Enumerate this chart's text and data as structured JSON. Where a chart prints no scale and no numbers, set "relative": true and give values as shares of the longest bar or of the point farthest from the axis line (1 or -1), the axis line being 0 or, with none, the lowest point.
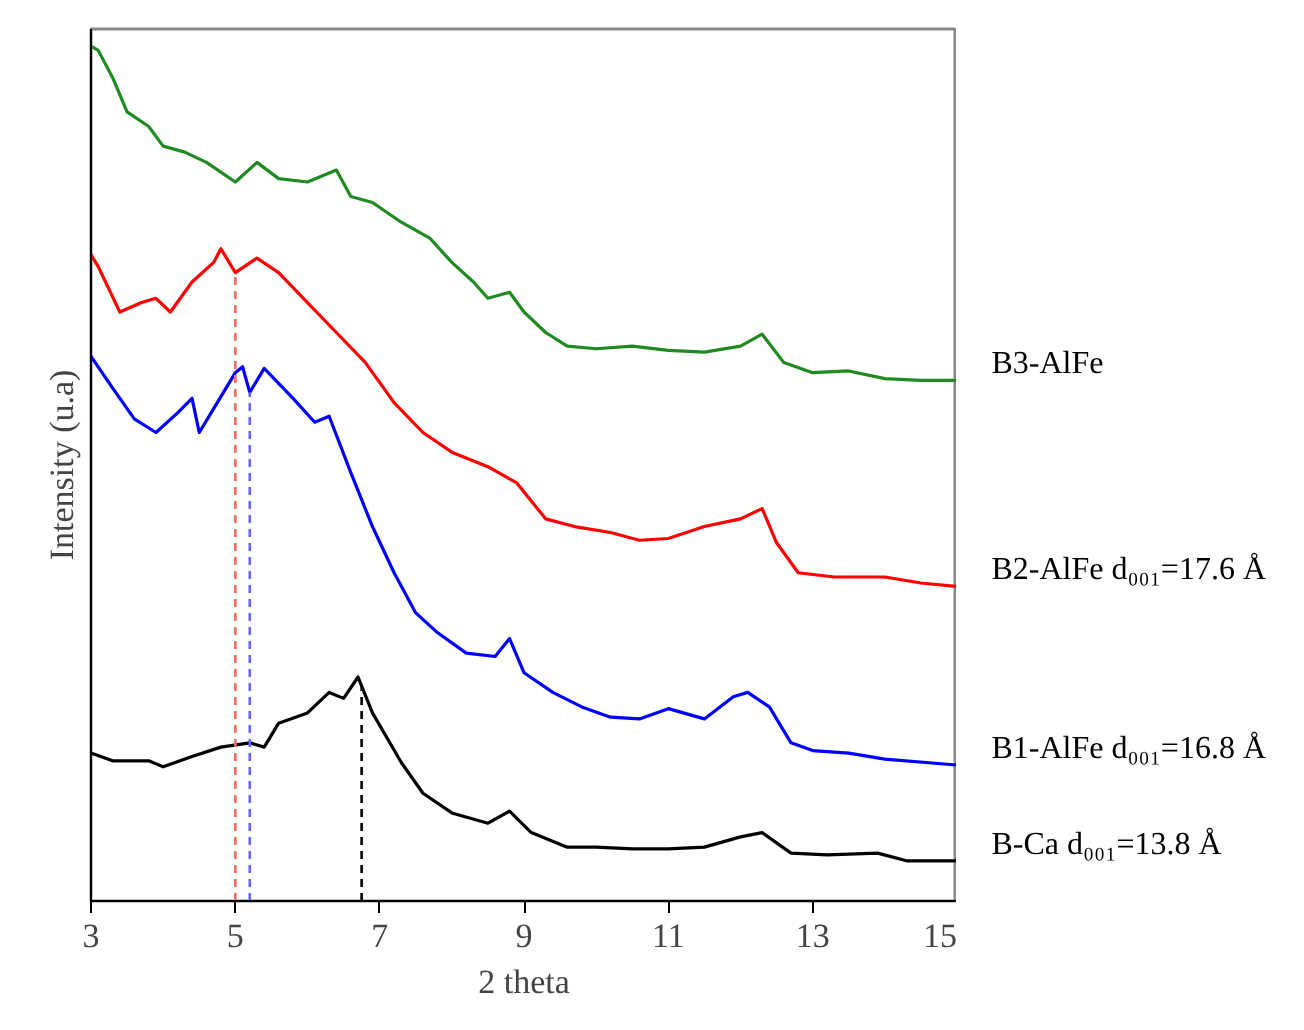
{
  "chart_data": {
    "type": "line",
    "relative": true,
    "xlabel": "2 theta",
    "ylabel": "Intensity (u.a)",
    "xlim": [
      3,
      15
    ],
    "xticks": [
      3,
      5,
      7,
      9,
      11,
      13,
      15
    ],
    "tick_labels": "x",
    "grid": false,
    "marker": "none",
    "line_style": "solid",
    "series": [
      {
        "name": "B3-AlFe",
        "color": "#1f8a1f",
        "x": [
          3.0,
          3.1,
          3.3,
          3.5,
          3.8,
          4.0,
          4.3,
          4.6,
          5.0,
          5.3,
          5.6,
          6.0,
          6.4,
          6.6,
          6.9,
          7.3,
          7.7,
          8.0,
          8.3,
          8.5,
          8.8,
          9.0,
          9.3,
          9.6,
          10.0,
          10.5,
          11.0,
          11.5,
          12.0,
          12.3,
          12.6,
          13.0,
          13.5,
          14.0,
          14.5,
          15.0
        ],
        "values": [
          1.0,
          0.995,
          0.963,
          0.923,
          0.906,
          0.883,
          0.876,
          0.864,
          0.841,
          0.864,
          0.845,
          0.841,
          0.855,
          0.824,
          0.817,
          0.794,
          0.775,
          0.747,
          0.724,
          0.705,
          0.712,
          0.689,
          0.665,
          0.649,
          0.646,
          0.649,
          0.644,
          0.642,
          0.649,
          0.663,
          0.63,
          0.618,
          0.62,
          0.611,
          0.609,
          0.609
        ]
      },
      {
        "name": "B2-AlFe d₀₀₁=17.6 Å",
        "color": "#ff0000",
        "x": [
          3.0,
          3.1,
          3.4,
          3.7,
          3.9,
          4.1,
          4.4,
          4.7,
          4.8,
          5.0,
          5.3,
          5.6,
          6.0,
          6.4,
          6.8,
          7.2,
          7.6,
          8.0,
          8.5,
          8.9,
          9.3,
          9.7,
          10.2,
          10.6,
          11.0,
          11.5,
          12.0,
          12.3,
          12.5,
          12.8,
          13.3,
          14.0,
          14.5,
          15.0
        ],
        "values": [
          0.756,
          0.742,
          0.689,
          0.7,
          0.705,
          0.689,
          0.724,
          0.747,
          0.763,
          0.735,
          0.752,
          0.735,
          0.7,
          0.665,
          0.63,
          0.583,
          0.548,
          0.525,
          0.508,
          0.489,
          0.447,
          0.438,
          0.431,
          0.422,
          0.424,
          0.438,
          0.447,
          0.459,
          0.419,
          0.384,
          0.379,
          0.379,
          0.372,
          0.368
        ]
      },
      {
        "name": "B1-AlFe d₀₀₁=16.8 Å",
        "color": "#0000ff",
        "x": [
          3.0,
          3.3,
          3.6,
          3.9,
          4.2,
          4.4,
          4.5,
          4.7,
          5.0,
          5.1,
          5.2,
          5.4,
          5.8,
          6.1,
          6.3,
          6.6,
          6.9,
          7.2,
          7.5,
          7.8,
          8.2,
          8.6,
          8.8,
          9.0,
          9.4,
          9.8,
          10.2,
          10.6,
          11.0,
          11.5,
          11.9,
          12.1,
          12.4,
          12.7,
          13.0,
          13.5,
          14.0,
          15.0
        ],
        "values": [
          0.637,
          0.6,
          0.564,
          0.548,
          0.571,
          0.588,
          0.548,
          0.576,
          0.618,
          0.625,
          0.595,
          0.623,
          0.588,
          0.56,
          0.567,
          0.501,
          0.438,
          0.384,
          0.337,
          0.314,
          0.29,
          0.286,
          0.307,
          0.267,
          0.244,
          0.227,
          0.215,
          0.213,
          0.225,
          0.213,
          0.239,
          0.244,
          0.227,
          0.185,
          0.176,
          0.173,
          0.166,
          0.159
        ]
      },
      {
        "name": "B-Ca d₀₀₁=13.8 Å",
        "color": "#000000",
        "x": [
          3.0,
          3.3,
          3.8,
          4.0,
          4.4,
          4.8,
          5.2,
          5.4,
          5.6,
          6.0,
          6.3,
          6.5,
          6.7,
          6.9,
          7.3,
          7.6,
          8.0,
          8.5,
          8.8,
          9.1,
          9.6,
          10.0,
          10.5,
          11.0,
          11.5,
          12.0,
          12.3,
          12.7,
          13.2,
          13.9,
          14.3,
          15.0
        ],
        "values": [
          0.173,
          0.164,
          0.164,
          0.157,
          0.169,
          0.18,
          0.185,
          0.18,
          0.208,
          0.22,
          0.244,
          0.237,
          0.262,
          0.22,
          0.162,
          0.126,
          0.103,
          0.091,
          0.105,
          0.08,
          0.063,
          0.063,
          0.061,
          0.061,
          0.063,
          0.075,
          0.08,
          0.056,
          0.054,
          0.056,
          0.047,
          0.047
        ]
      }
    ],
    "ref_lines": [
      {
        "axis": "x",
        "value": 5.0,
        "color": "#ff6666",
        "line_style": "dashed"
      },
      {
        "axis": "x",
        "value": 5.2,
        "color": "#6666ff",
        "line_style": "dashed"
      },
      {
        "axis": "x",
        "value": 6.75,
        "color": "#000000",
        "line_style": "dashed"
      }
    ]
  }
}
